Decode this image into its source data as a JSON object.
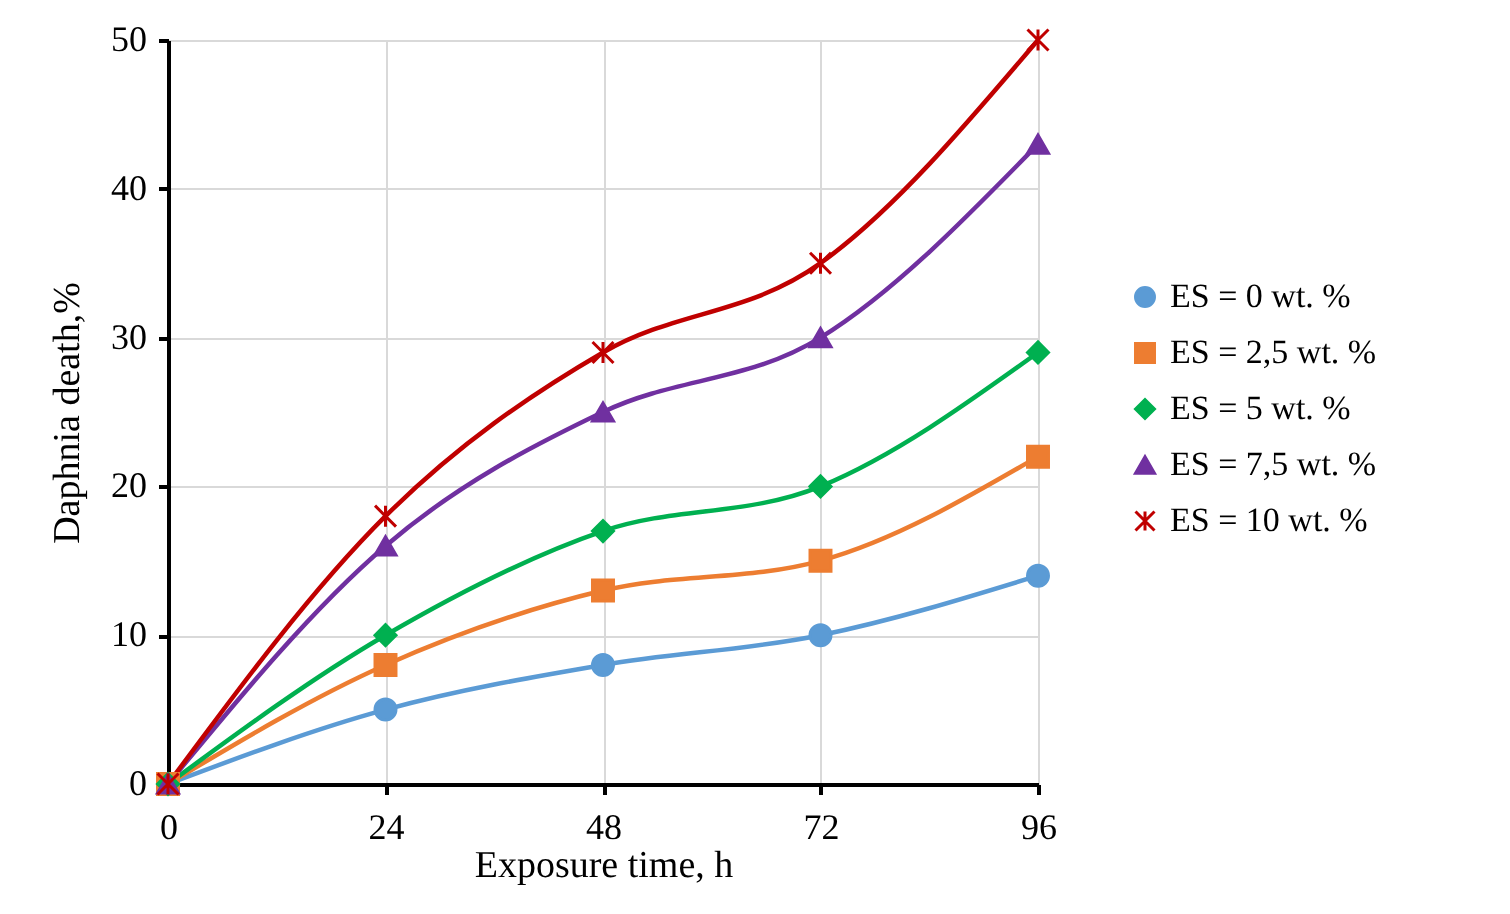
{
  "chart_data": {
    "type": "line",
    "xlabel": "Exposure time, h",
    "ylabel": "Daphnia death,%",
    "x": [
      0,
      24,
      48,
      72,
      96
    ],
    "xlim": [
      0,
      96
    ],
    "xticks": [
      0,
      24,
      48,
      72,
      96
    ],
    "ylim": [
      0,
      50
    ],
    "yticks": [
      0,
      10,
      20,
      30,
      40,
      50
    ],
    "grid": true,
    "legend": "right",
    "line_style": "solid",
    "series": [
      {
        "name": "ES = 0 wt. %",
        "color": "#5b9bd5",
        "marker": "circle",
        "values": [
          0,
          5,
          8,
          10,
          14
        ]
      },
      {
        "name": "ES = 2,5 wt. %",
        "color": "#ed7d31",
        "marker": "square",
        "values": [
          0,
          8,
          13,
          15,
          22
        ]
      },
      {
        "name": "ES = 5 wt. %",
        "color": "#00b050",
        "marker": "diamond",
        "values": [
          0,
          10,
          17,
          20,
          29
        ]
      },
      {
        "name": "ES = 7,5 wt. %",
        "color": "#7030a0",
        "marker": "triangle",
        "values": [
          0,
          16,
          25,
          30,
          43
        ]
      },
      {
        "name": "ES = 10 wt. %",
        "color": "#c00000",
        "marker": "cross",
        "values": [
          0,
          18,
          29,
          35,
          50
        ]
      }
    ]
  }
}
